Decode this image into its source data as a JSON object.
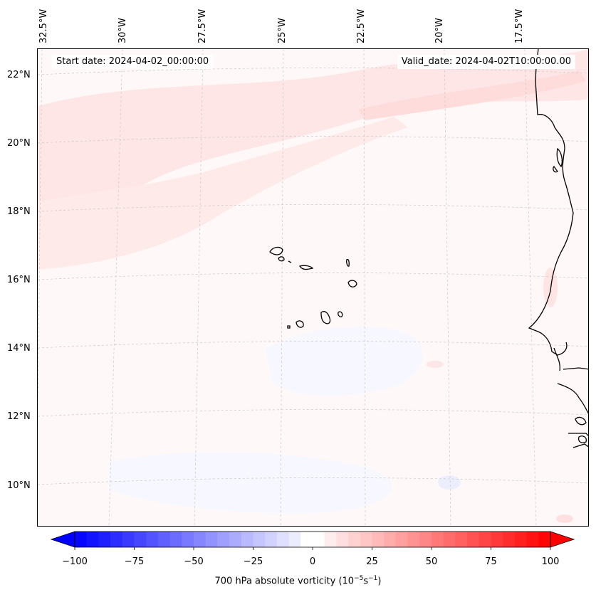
{
  "map": {
    "start_label": "Start date: 2024-04-02_00:00:00",
    "valid_label": "Valid_date: 2024-04-02T10:00:00.00",
    "lon_labels": [
      "32.5°W",
      "30°W",
      "27.5°W",
      "25°W",
      "22.5°W",
      "20°W",
      "17.5°W"
    ],
    "lat_labels": [
      "22°N",
      "20°N",
      "18°N",
      "16°N",
      "14°N",
      "12°N",
      "10°N"
    ]
  },
  "colorbar": {
    "title": "700 hPa absolute vorticity (10",
    "title_exp": "−5",
    "title_unit": "s",
    "title_unit_exp": "−1",
    "title_close": ")",
    "ticks": [
      "−100",
      "−75",
      "−50",
      "−25",
      "0",
      "25",
      "50",
      "75",
      "100"
    ],
    "min": -100,
    "max": 100,
    "step": 5,
    "neg_color": "#0000ff",
    "pos_color": "#ff0000"
  }
}
